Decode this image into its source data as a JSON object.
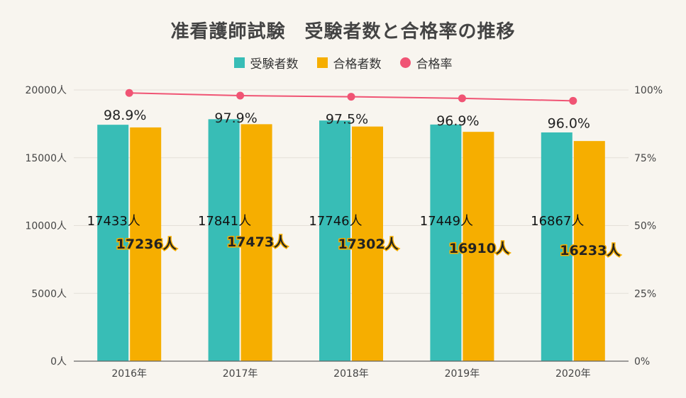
{
  "colors": {
    "background": "#f8f5ef",
    "examinees": "#38bdb6",
    "passers": "#f6ae00",
    "rate": "#f05474",
    "grid": "#e4e0d8",
    "axis": "#666666"
  },
  "chart_data": {
    "type": "bar",
    "title": "准看護師試験　受験者数と合格率の推移",
    "categories": [
      "2016年",
      "2017年",
      "2018年",
      "2019年",
      "2020年"
    ],
    "series": [
      {
        "name": "受験者数",
        "type": "bar",
        "axis": "left",
        "values": [
          17433,
          17841,
          17746,
          17449,
          16867
        ],
        "labels": [
          "17433人",
          "17841人",
          "17746人",
          "17449人",
          "16867人"
        ]
      },
      {
        "name": "合格者数",
        "type": "bar",
        "axis": "left",
        "values": [
          17236,
          17473,
          17302,
          16910,
          16233
        ],
        "labels": [
          "17236人",
          "17473人",
          "17302人",
          "16910人",
          "16233人"
        ]
      },
      {
        "name": "合格率",
        "type": "line",
        "axis": "right",
        "values": [
          98.9,
          97.9,
          97.5,
          96.9,
          96.0
        ],
        "labels": [
          "98.9%",
          "97.9%",
          "97.5%",
          "96.9%",
          "96.0%"
        ]
      }
    ],
    "y_left": {
      "ylim": [
        0,
        20000
      ],
      "ticks": [
        0,
        5000,
        10000,
        15000,
        20000
      ],
      "tick_labels": [
        "0人",
        "5000人",
        "10000人",
        "15000人",
        "20000人"
      ]
    },
    "y_right": {
      "ylim": [
        0,
        100
      ],
      "ticks": [
        0,
        25,
        50,
        75,
        100
      ],
      "tick_labels": [
        "0%",
        "25%",
        "50%",
        "75%",
        "100%"
      ]
    },
    "grid": true,
    "legend_position": "top-center"
  }
}
